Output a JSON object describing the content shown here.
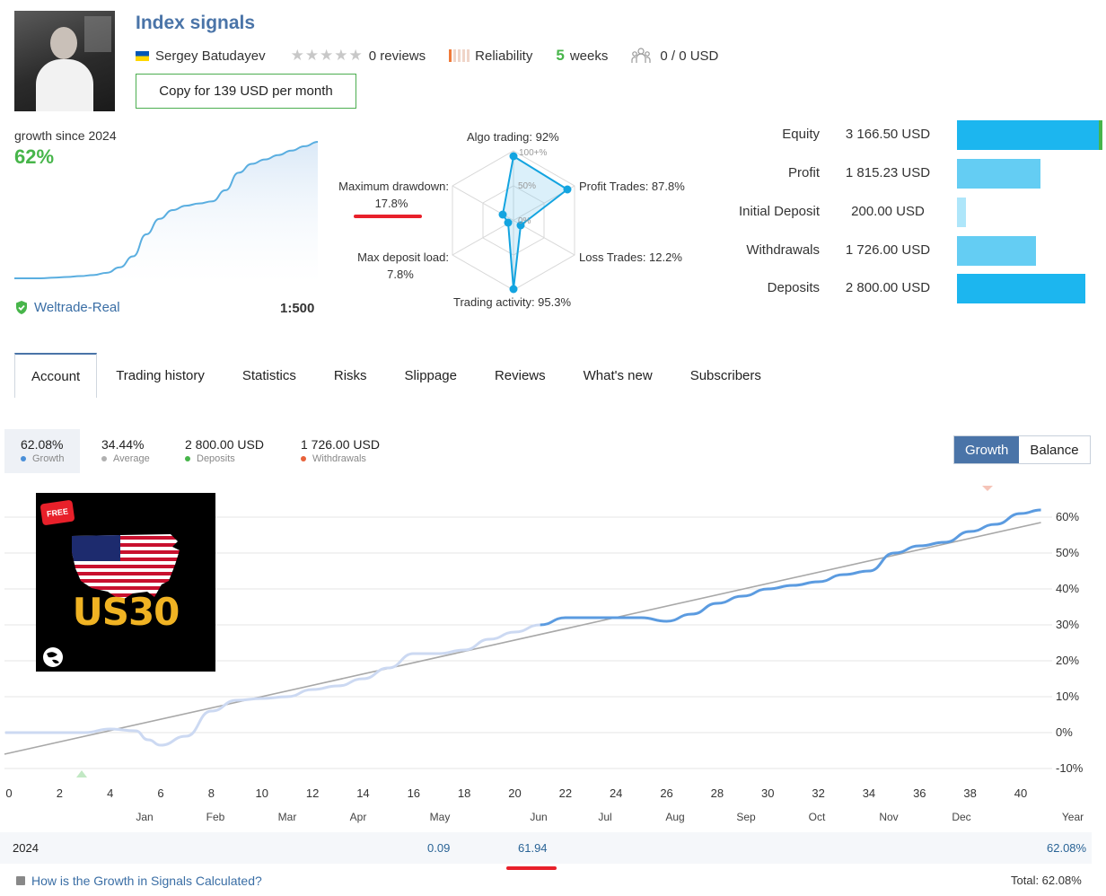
{
  "header": {
    "title": "Index signals",
    "author": "Sergey Batudayev",
    "reviews": "0 reviews",
    "reliability_label": "Reliability",
    "weeks_num": "5",
    "weeks_label": "weeks",
    "subscribers_funds": "0 / 0 USD",
    "copy_button": "Copy for 139 USD per month"
  },
  "growth_summary": {
    "label": "growth since 2024",
    "value": "62%",
    "broker": "Weltrade-Real",
    "leverage": "1:500"
  },
  "radar": {
    "algo": "Algo trading: 92%",
    "profit_trades": "Profit Trades: 87.8%",
    "loss_trades": "Loss Trades: 12.2%",
    "activity": "Trading activity: 95.3%",
    "deposit_load_label": "Max deposit load:",
    "deposit_load_value": "7.8%",
    "drawdown_label": "Maximum drawdown:",
    "drawdown_value": "17.8%",
    "ring_100": "100+%",
    "ring_50": "50%",
    "ring_0": "0%"
  },
  "finance": [
    {
      "label": "Equity",
      "value": "3 166.50 USD",
      "amount": 3166.5
    },
    {
      "label": "Profit",
      "value": "1 815.23 USD",
      "amount": 1815.23
    },
    {
      "label": "Initial Deposit",
      "value": "200.00 USD",
      "amount": 200.0
    },
    {
      "label": "Withdrawals",
      "value": "1 726.00 USD",
      "amount": 1726.0
    },
    {
      "label": "Deposits",
      "value": "2 800.00 USD",
      "amount": 2800.0
    }
  ],
  "tabs": [
    "Account",
    "Trading history",
    "Statistics",
    "Risks",
    "Slippage",
    "Reviews",
    "What's new",
    "Subscribers"
  ],
  "stats": [
    {
      "value": "62.08%",
      "label": "Growth",
      "color": "#4a8fd8"
    },
    {
      "value": "34.44%",
      "label": "Average",
      "color": "#b0b0b0"
    },
    {
      "value": "2 800.00 USD",
      "label": "Deposits",
      "color": "#47b54a"
    },
    {
      "value": "1 726.00 USD",
      "label": "Withdrawals",
      "color": "#e8623a"
    }
  ],
  "toggle": {
    "growth": "Growth",
    "balance": "Balance"
  },
  "promo": {
    "badge": "FREE",
    "text": "US30"
  },
  "chart_data": {
    "type": "line",
    "x_ticks": [
      "0",
      "2",
      "4",
      "6",
      "8",
      "10",
      "12",
      "14",
      "16",
      "18",
      "20",
      "22",
      "24",
      "26",
      "28",
      "30",
      "32",
      "34",
      "36",
      "38",
      "40"
    ],
    "y_ticks": [
      "60%",
      "50%",
      "40%",
      "30%",
      "20%",
      "10%",
      "0%",
      "-10%"
    ],
    "months": [
      "Jan",
      "Feb",
      "Mar",
      "Apr",
      "May",
      "Jun",
      "Jul",
      "Aug",
      "Sep",
      "Oct",
      "Nov",
      "Dec",
      "Year"
    ],
    "xlim": [
      0,
      41
    ],
    "ylim": [
      -10,
      60
    ],
    "series": [
      {
        "values": [
          [
            0,
            0
          ],
          [
            1,
            0
          ],
          [
            2,
            0
          ],
          [
            3,
            0
          ],
          [
            4,
            1
          ],
          [
            5,
            0.5
          ],
          [
            5.5,
            -2
          ],
          [
            6,
            -3.5
          ],
          [
            7,
            -1
          ],
          [
            8,
            6
          ],
          [
            9,
            9
          ],
          [
            10,
            9.5
          ],
          [
            11,
            10
          ],
          [
            12,
            12
          ],
          [
            13,
            13
          ],
          [
            14,
            15
          ],
          [
            15,
            18
          ],
          [
            16,
            22
          ],
          [
            17,
            22
          ],
          [
            18,
            23
          ],
          [
            19,
            26
          ],
          [
            20,
            28
          ],
          [
            21,
            30
          ],
          [
            22,
            32
          ],
          [
            23,
            32
          ],
          [
            24,
            32
          ],
          [
            25,
            32
          ],
          [
            26,
            31
          ],
          [
            27,
            33
          ],
          [
            28,
            36
          ],
          [
            29,
            38
          ],
          [
            30,
            40
          ],
          [
            31,
            41
          ],
          [
            32,
            42
          ],
          [
            33,
            44
          ],
          [
            34,
            45
          ],
          [
            35,
            50
          ],
          [
            36,
            52
          ],
          [
            37,
            53
          ],
          [
            38,
            56
          ],
          [
            39,
            58
          ],
          [
            40,
            61
          ],
          [
            40.8,
            62
          ]
        ]
      },
      {
        "values": [
          [
            0,
            -6
          ],
          [
            40.8,
            58.5
          ]
        ]
      }
    ]
  },
  "mini_chart": {
    "type": "area",
    "values": [
      0,
      0,
      0,
      0.3,
      0.6,
      1,
      1.5,
      2.5,
      5,
      10,
      20,
      27,
      31,
      33,
      34,
      35,
      40,
      48,
      52,
      54,
      56,
      58,
      60,
      62
    ]
  },
  "year_row": {
    "year": "2024",
    "may": "0.09",
    "jun": "61.94",
    "total_year": "62.08%"
  },
  "footer": {
    "link": "How is the Growth in Signals Calculated?",
    "total": "Total: 62.08%"
  }
}
